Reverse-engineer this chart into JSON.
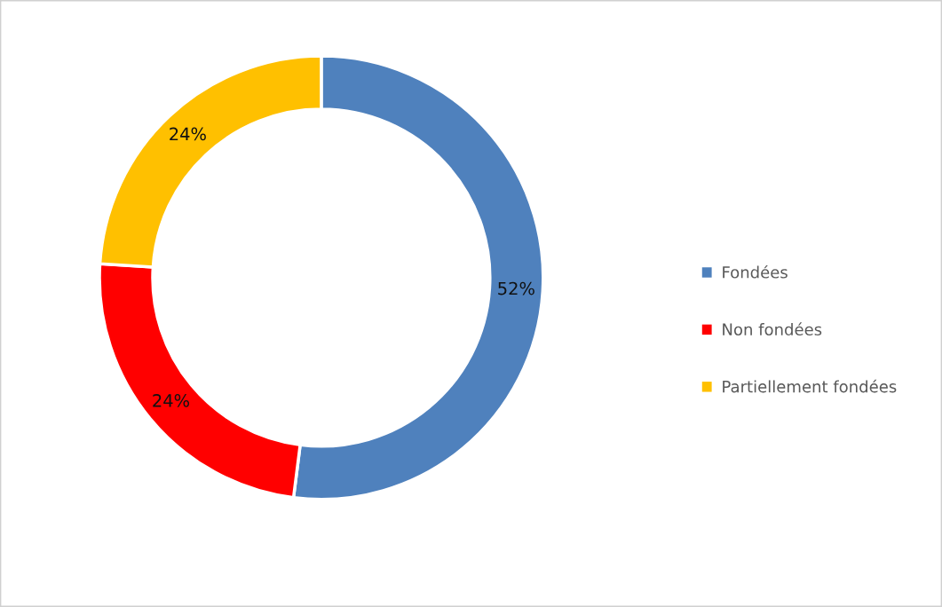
{
  "chart_data": {
    "type": "donut",
    "categories": [
      "Fondées",
      "Non fondées",
      "Partiellement fondées"
    ],
    "values": [
      52,
      24,
      24
    ],
    "colors": [
      "#4f81bd",
      "#ff0000",
      "#ffc000"
    ],
    "value_labels": [
      "52%",
      "24%",
      "24%"
    ],
    "legend": "right"
  }
}
